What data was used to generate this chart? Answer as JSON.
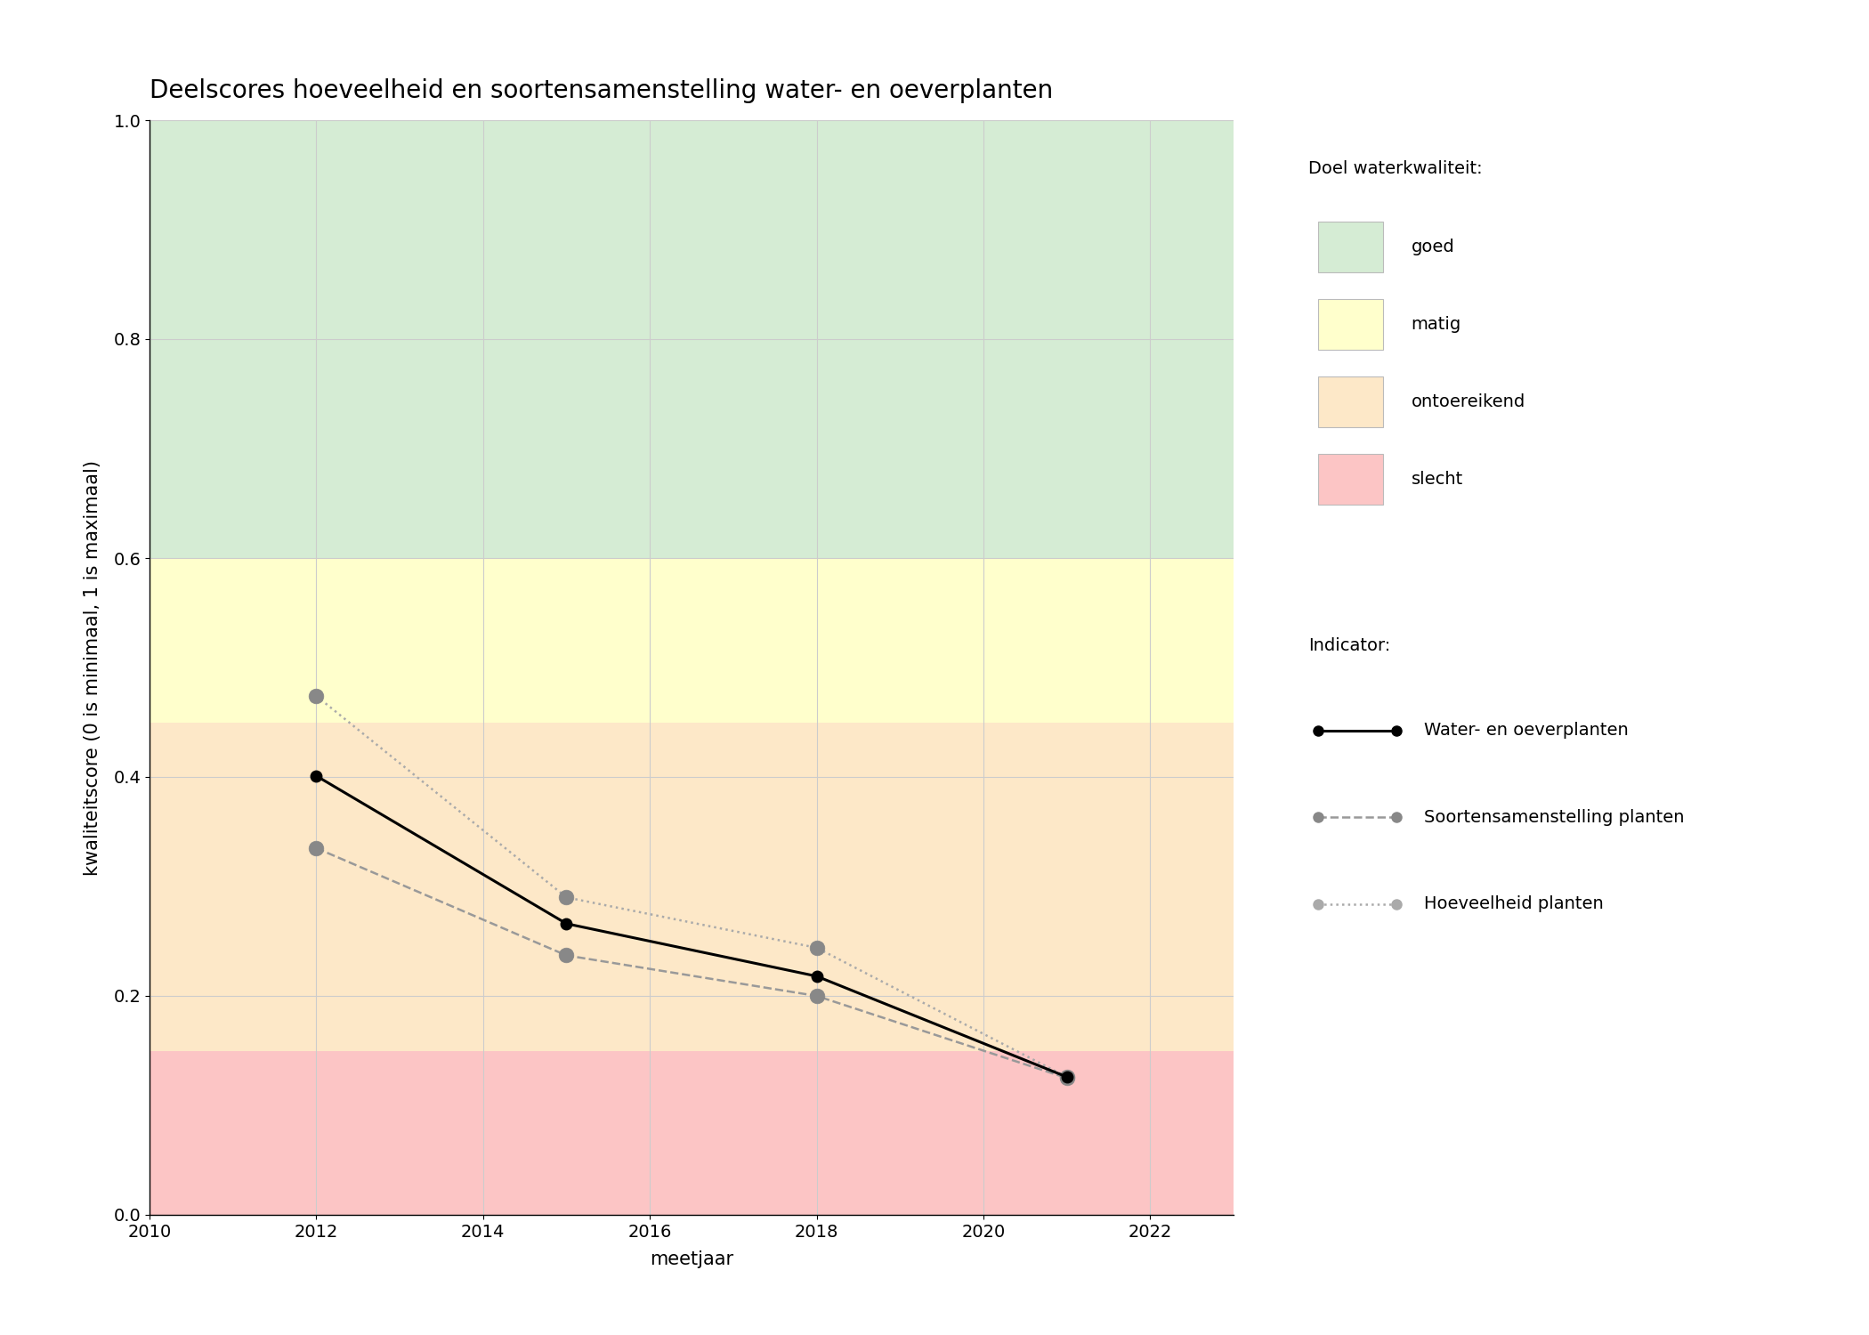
{
  "title": "Deelscores hoeveelheid en soortensamenstelling water- en oeverplanten",
  "xlabel": "meetjaar",
  "ylabel": "kwaliteitscore (0 is minimaal, 1 is maximaal)",
  "xlim": [
    2010,
    2023
  ],
  "ylim": [
    0.0,
    1.0
  ],
  "xticks": [
    2010,
    2012,
    2014,
    2016,
    2018,
    2020,
    2022
  ],
  "yticks": [
    0.0,
    0.2,
    0.4,
    0.6,
    0.8,
    1.0
  ],
  "background_color": "#ffffff",
  "quality_bands": [
    {
      "name": "goed",
      "ymin": 0.6,
      "ymax": 1.0,
      "color": "#d5ecd4"
    },
    {
      "name": "matig",
      "ymin": 0.45,
      "ymax": 0.6,
      "color": "#ffffcc"
    },
    {
      "name": "ontoereikend",
      "ymin": 0.15,
      "ymax": 0.45,
      "color": "#fde8c8"
    },
    {
      "name": "slecht",
      "ymin": 0.0,
      "ymax": 0.15,
      "color": "#fcc5c5"
    }
  ],
  "series": {
    "water_en_oeverplanten": {
      "years": [
        2012,
        2015,
        2018,
        2021
      ],
      "values": [
        0.401,
        0.266,
        0.218,
        0.126
      ],
      "color": "#000000",
      "linestyle": "solid",
      "linewidth": 2.2,
      "marker": "o",
      "markersize": 9,
      "markerfacecolor": "#000000",
      "label": "Water- en oeverplanten",
      "zorder": 5
    },
    "soortensamenstelling": {
      "years": [
        2012,
        2015,
        2018,
        2021
      ],
      "values": [
        0.335,
        0.237,
        0.2,
        0.125
      ],
      "color": "#999999",
      "linestyle": "dashed",
      "linewidth": 1.8,
      "marker": "o",
      "markersize": 12,
      "markerfacecolor": "#888888",
      "label": "Soortensamenstelling planten",
      "zorder": 4
    },
    "hoeveelheid": {
      "years": [
        2012,
        2015,
        2018,
        2021
      ],
      "values": [
        0.474,
        0.29,
        0.244,
        0.126
      ],
      "color": "#aaaaaa",
      "linestyle": "dotted",
      "linewidth": 1.8,
      "marker": "o",
      "markersize": 12,
      "markerfacecolor": "#888888",
      "label": "Hoeveelheid planten",
      "zorder": 3
    }
  },
  "legend_title_quality": "Doel waterkwaliteit:",
  "legend_title_indicator": "Indicator:",
  "legend_quality_items": [
    {
      "label": "goed",
      "color": "#d5ecd4"
    },
    {
      "label": "matig",
      "color": "#ffffcc"
    },
    {
      "label": "ontoereikend",
      "color": "#fde8c8"
    },
    {
      "label": "slecht",
      "color": "#fcc5c5"
    }
  ],
  "indicator_items": [
    {
      "label": "Water- en oeverplanten",
      "color": "#000000",
      "linestyle": "solid",
      "linewidth": 2.2,
      "markercolor": "#000000"
    },
    {
      "label": "Soortensamenstelling planten",
      "color": "#999999",
      "linestyle": "dashed",
      "linewidth": 1.8,
      "markercolor": "#888888"
    },
    {
      "label": "Hoeveelheid planten",
      "color": "#aaaaaa",
      "linestyle": "dotted",
      "linewidth": 1.8,
      "markercolor": "#aaaaaa"
    }
  ],
  "grid_color": "#cccccc",
  "grid_linewidth": 0.8,
  "title_fontsize": 20,
  "axis_label_fontsize": 15,
  "tick_fontsize": 14,
  "legend_fontsize": 14
}
